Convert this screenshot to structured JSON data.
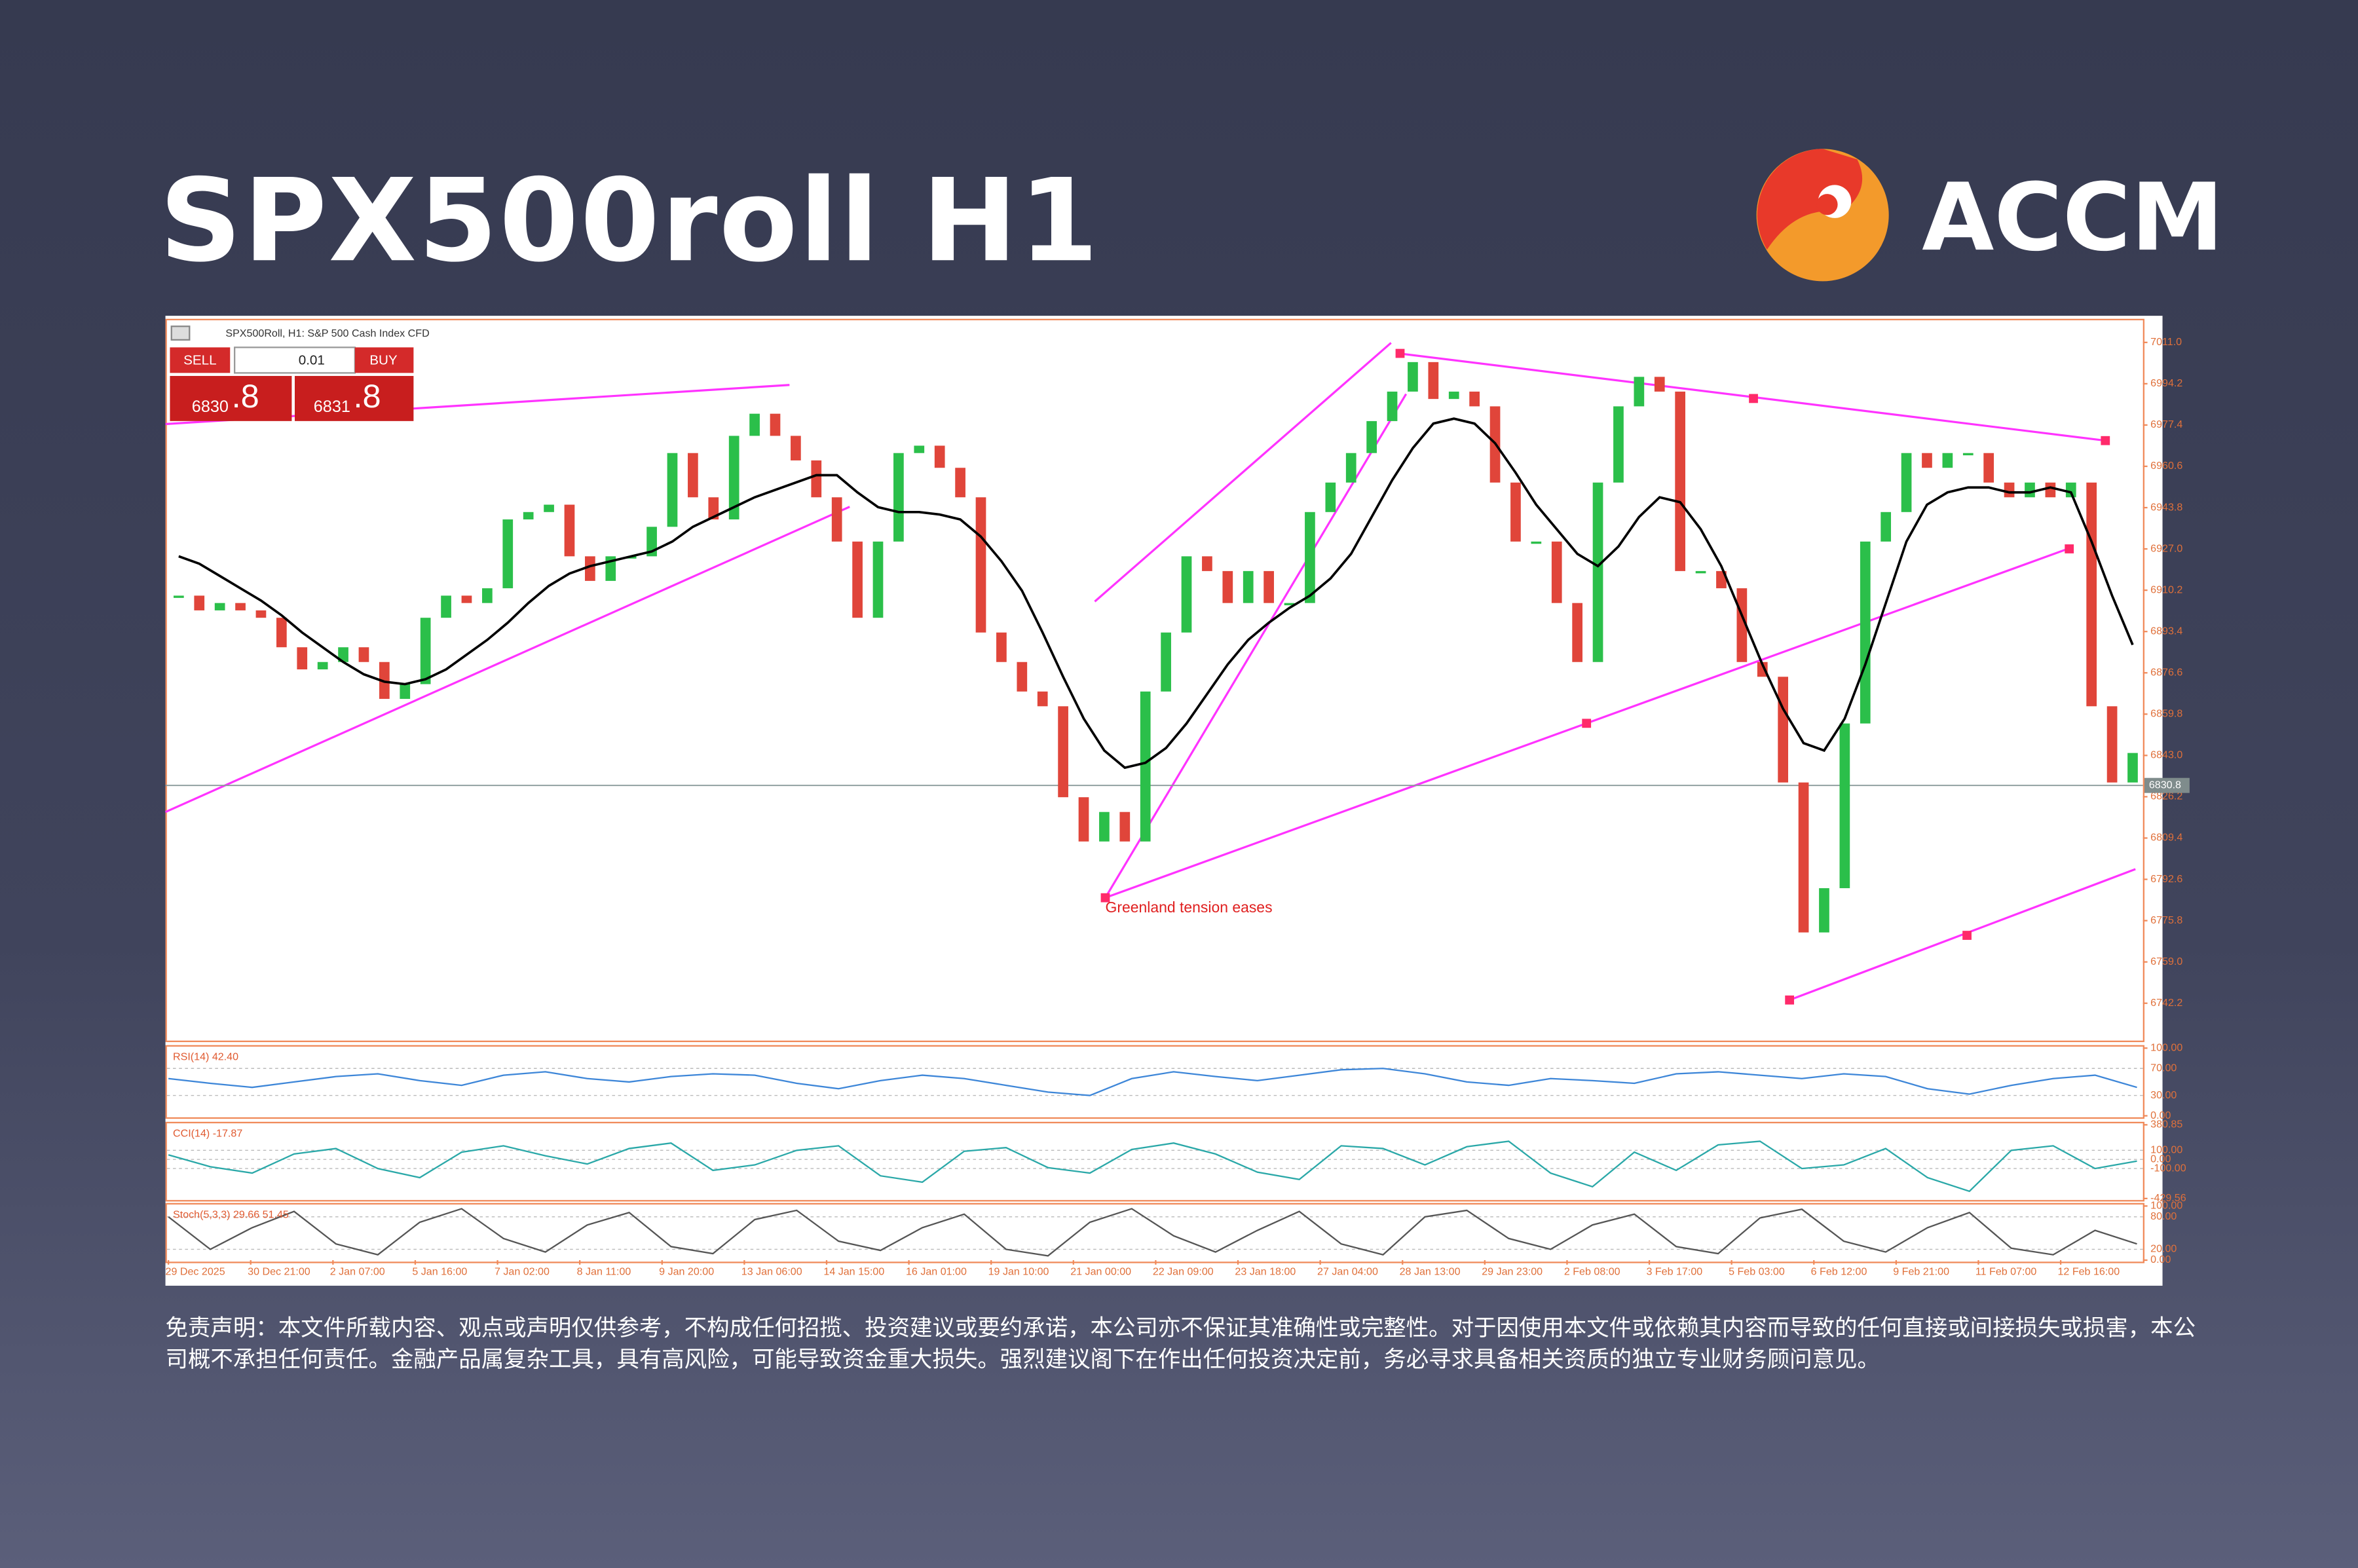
{
  "header": {
    "title": "SPX500roll H1",
    "brand": "ACCM"
  },
  "chart_data": {
    "type": "candlestick",
    "symbol_info": "SPX500Roll, H1:  S&P 500 Cash Index CFD",
    "trade_panel": {
      "sell": "SELL",
      "buy": "BUY",
      "volume": "0.01",
      "bid_main": "6830",
      "bid_frac": ".8",
      "ask_main": "6831",
      "ask_frac": ".8"
    },
    "annotation": "Greenland tension eases",
    "categories": [
      "29 Dec 2025",
      null,
      null,
      null,
      "30 Dec 21:00",
      null,
      null,
      null,
      "2 Jan 07:00",
      null,
      null,
      null,
      "5 Jan 16:00",
      null,
      null,
      null,
      "7 Jan 02:00",
      null,
      null,
      null,
      "8 Jan 11:00",
      null,
      null,
      null,
      "9 Jan 20:00",
      null,
      null,
      null,
      "13 Jan 06:00",
      null,
      null,
      null,
      "14 Jan 15:00",
      null,
      null,
      null,
      "16 Jan 01:00",
      null,
      null,
      null,
      "19 Jan 10:00",
      null,
      null,
      null,
      "21 Jan 00:00",
      null,
      null,
      null,
      "22 Jan 09:00",
      null,
      null,
      null,
      "23 Jan 18:00",
      null,
      null,
      null,
      "27 Jan 04:00",
      null,
      null,
      null,
      "28 Jan 13:00",
      null,
      null,
      null,
      "29 Jan 23:00",
      null,
      null,
      null,
      "2 Feb 08:00",
      null,
      null,
      null,
      "3 Feb 17:00",
      null,
      null,
      null,
      "5 Feb 03:00",
      null,
      null,
      null,
      "6 Feb 12:00",
      null,
      null,
      null,
      "9 Feb 21:00",
      null,
      null,
      null,
      "11 Feb 07:00",
      null,
      null,
      null,
      "12 Feb 16:00",
      null,
      null,
      null
    ],
    "values": [
      6908,
      6902,
      6905,
      6902,
      6899,
      6887,
      6878,
      6881,
      6887,
      6881,
      6866,
      6872,
      6899,
      6908,
      6905,
      6911,
      6939,
      6942,
      6945,
      6924,
      6914,
      6924,
      6924,
      6936,
      6966,
      6948,
      6939,
      6973,
      6982,
      6973,
      6963,
      6948,
      6930,
      6899,
      6930,
      6966,
      6969,
      6960,
      6948,
      6893,
      6881,
      6869,
      6863,
      6826,
      6808,
      6820,
      6808,
      6869,
      6893,
      6924,
      6918,
      6905,
      6918,
      6905,
      6905,
      6942,
      6954,
      6966,
      6979,
      6991,
      7003,
      6988,
      6991,
      6985,
      6954,
      6930,
      6930,
      6905,
      6881,
      6954,
      6985,
      6997,
      6991,
      6918,
      6918,
      6911,
      6881,
      6875,
      6832,
      6771,
      6789,
      6856,
      6930,
      6942,
      6966,
      6960,
      6966,
      6966,
      6954,
      6948,
      6954,
      6948,
      6954,
      6863,
      6832,
      6844
    ],
    "ma_values": [
      6924,
      6921,
      6916,
      6911,
      6906,
      6900,
      6893,
      6887,
      6881,
      6876,
      6873,
      6872,
      6874,
      6878,
      6884,
      6890,
      6897,
      6905,
      6912,
      6917,
      6920,
      6922,
      6924,
      6926,
      6930,
      6936,
      6940,
      6944,
      6948,
      6951,
      6954,
      6957,
      6957,
      6950,
      6944,
      6942,
      6942,
      6941,
      6939,
      6932,
      6922,
      6910,
      6893,
      6875,
      6858,
      6845,
      6838,
      6840,
      6846,
      6856,
      6868,
      6880,
      6890,
      6897,
      6903,
      6908,
      6915,
      6925,
      6940,
      6955,
      6968,
      6978,
      6980,
      6978,
      6970,
      6958,
      6945,
      6935,
      6925,
      6920,
      6928,
      6940,
      6948,
      6946,
      6935,
      6920,
      6900,
      6880,
      6862,
      6848,
      6845,
      6858,
      6880,
      6905,
      6930,
      6945,
      6950,
      6952,
      6952,
      6950,
      6950,
      6952,
      6950,
      6930,
      6908,
      6888
    ],
    "ma_color": "#000000",
    "up_color": "#2bbf4a",
    "down_color": "#e0453a",
    "ylim": [
      6727,
      7020
    ],
    "yticks": [
      {
        "value": 7011,
        "label": "7011.0"
      },
      6994.2,
      6977.4,
      6960.6,
      6943.8,
      {
        "value": 6927,
        "label": "6927.0"
      },
      6910.2,
      6893.4,
      6876.6,
      6859.8,
      {
        "value": 6843,
        "label": "6843.0"
      },
      6826.2,
      6809.4,
      6792.6,
      6775.8,
      {
        "value": 6759,
        "label": "6759.0"
      },
      6742.2
    ],
    "last_price": 6830.8,
    "indicators": [
      {
        "label": "RSI(14) 42.40",
        "color": "#3d86d8",
        "ylim": [
          0,
          100
        ],
        "yticks": [
          {
            "value": 100,
            "label": "100.00"
          },
          {
            "value": 70,
            "label": "70.00"
          },
          {
            "value": 30,
            "label": "30.00"
          },
          {
            "value": 0,
            "label": "0.00"
          }
        ],
        "values": [
          55,
          48,
          42,
          50,
          58,
          62,
          52,
          45,
          60,
          65,
          55,
          50,
          58,
          62,
          60,
          48,
          40,
          52,
          60,
          55,
          45,
          35,
          30,
          55,
          65,
          58,
          52,
          60,
          68,
          70,
          62,
          50,
          45,
          55,
          52,
          48,
          62,
          65,
          60,
          55,
          62,
          58,
          40,
          32,
          45,
          55,
          60,
          42
        ]
      },
      {
        "label": "CCI(14) -17.87",
        "color": "#2aa8a8",
        "ylim": [
          -429.56,
          380.85
        ],
        "yticks": [
          {
            "value": 380.85,
            "label": "380.85"
          },
          {
            "value": 100,
            "label": "100.00"
          },
          {
            "value": 0,
            "label": "0.00"
          },
          {
            "value": -100,
            "label": "-100.00"
          },
          {
            "value": -429.56,
            "label": "-429.56"
          }
        ],
        "values": [
          50,
          -80,
          -150,
          60,
          120,
          -100,
          -200,
          80,
          150,
          40,
          -50,
          120,
          180,
          -120,
          -60,
          100,
          150,
          -180,
          -250,
          90,
          130,
          -90,
          -150,
          110,
          180,
          60,
          -140,
          -220,
          150,
          120,
          -60,
          140,
          200,
          -150,
          -300,
          80,
          -120,
          160,
          200,
          -100,
          -60,
          120,
          -200,
          -350,
          100,
          150,
          -100,
          -18
        ]
      },
      {
        "label": "Stoch(5,3,3) 29.66 51.45",
        "color": "#555555",
        "ylim": [
          0,
          100
        ],
        "yticks": [
          {
            "value": 100,
            "label": "100.00"
          },
          {
            "value": 80,
            "label": "80.00"
          },
          {
            "value": 20,
            "label": "20.00"
          },
          {
            "value": 0,
            "label": "0.00"
          }
        ],
        "values": [
          80,
          20,
          60,
          90,
          30,
          10,
          70,
          95,
          40,
          15,
          65,
          88,
          25,
          12,
          75,
          92,
          35,
          18,
          60,
          85,
          20,
          8,
          70,
          95,
          45,
          15,
          55,
          90,
          30,
          10,
          80,
          92,
          40,
          20,
          65,
          85,
          25,
          12,
          78,
          94,
          35,
          15,
          60,
          88,
          22,
          10,
          55,
          30
        ]
      }
    ]
  },
  "disclaimer": "免责声明：本文件所载内容、观点或声明仅供参考，不构成任何招揽、投资建议或要约承诺，本公司亦不保证其准确性或完整性。对于因使用本文件或依赖其内容而导致的任何直接或间接损失或损害，本公司概不承担任何责任。金融产品属复杂工具，具有高风险，可能导致资金重大损失。强烈建议阁下在作出任何投资决定前，务必寻求具备相关资质的独立专业财务顾问意见。"
}
